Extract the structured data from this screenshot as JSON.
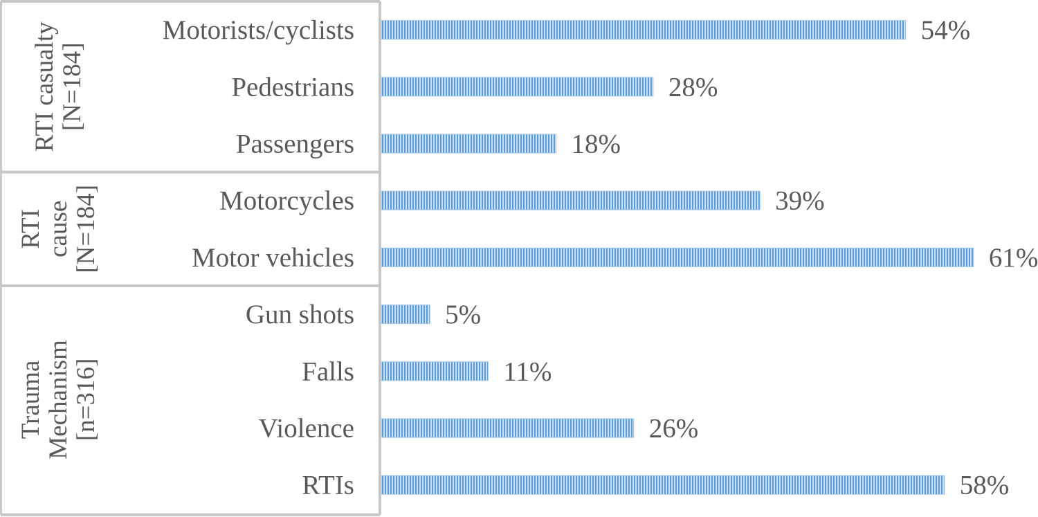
{
  "chart_data": {
    "type": "bar",
    "orientation": "horizontal",
    "value_format": "percent",
    "xlim": [
      0,
      65
    ],
    "bar_color": "#5B9BD5",
    "grid": false,
    "legend": "none",
    "groups": [
      {
        "label_lines": [
          "RTI casualty",
          "[N=184]"
        ],
        "categories": [
          "Motorists/cyclists",
          "Pedestrians",
          "Passengers"
        ],
        "values": [
          54,
          28,
          18
        ],
        "value_labels": [
          "54%",
          "28%",
          "18%"
        ]
      },
      {
        "label_lines": [
          "RTI",
          "cause",
          "[N=184]"
        ],
        "categories": [
          "Motorcycles",
          "Motor vehicles"
        ],
        "values": [
          39,
          61
        ],
        "value_labels": [
          "39%",
          "61%"
        ]
      },
      {
        "label_lines": [
          "Trauma",
          "Mechanism",
          "[n=316]"
        ],
        "categories": [
          "Gun shots",
          "Falls",
          "Violence",
          "RTIs"
        ],
        "values": [
          5,
          11,
          26,
          58
        ],
        "value_labels": [
          "5%",
          "11%",
          "26%",
          "58%"
        ]
      }
    ]
  }
}
